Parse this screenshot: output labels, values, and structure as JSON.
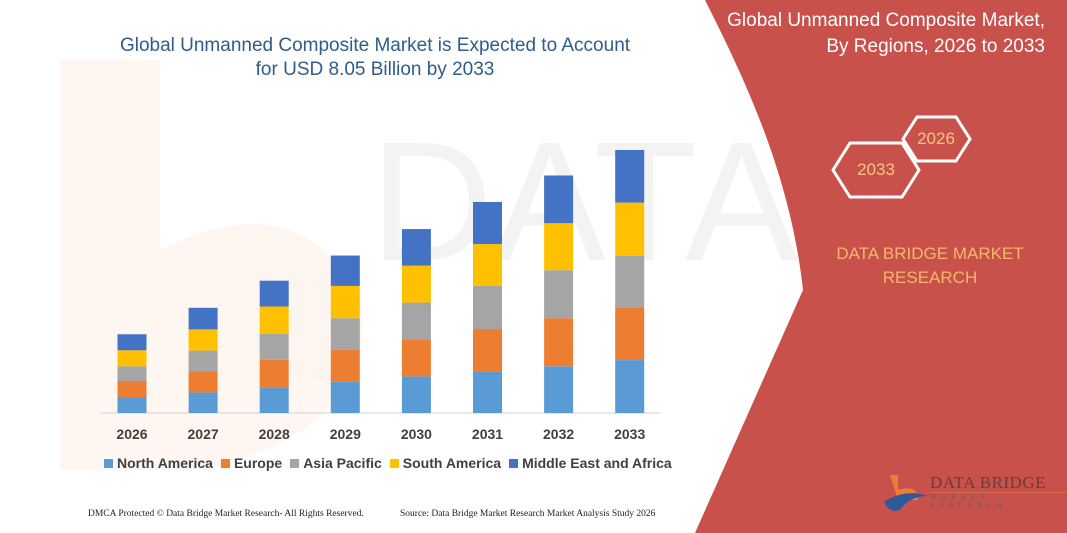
{
  "header": {
    "title_line1": "Global Unmanned Composite Market is Expected to Account",
    "title_line2": "for USD 8.05 Billion by 2033"
  },
  "side_panel": {
    "title_line1": "Global Unmanned Composite Market,",
    "title_line2": "By Regions, 2026 to 2033",
    "hex_years": [
      "2033",
      "2026"
    ],
    "brand_line1": "DATA BRIDGE MARKET",
    "brand_line2": "RESEARCH",
    "logo_text": "DATA BRIDGE",
    "logo_subtext": "MARKET RESEARCH",
    "panel_color": "#c9514b"
  },
  "footer": {
    "left": "DMCA Protected © Data Bridge Market Research-  All Rights Reserved.",
    "right": "Source: Data Bridge Market Research  Market Analysis Study 2026"
  },
  "chart_data": {
    "type": "bar",
    "stacked": true,
    "title": "Global Unmanned Composite Market is Expected to Account for USD 8.05 Billion by 2033",
    "xlabel": "",
    "ylabel": "",
    "grid": false,
    "legend_position": "bottom",
    "categories": [
      "2026",
      "2027",
      "2028",
      "2029",
      "2030",
      "2031",
      "2032",
      "2033"
    ],
    "series": [
      {
        "name": "North America",
        "color": "#5b9bd5",
        "values": [
          0.49,
          0.63,
          0.79,
          0.97,
          1.12,
          1.28,
          1.43,
          1.62
        ]
      },
      {
        "name": "Europe",
        "color": "#ed7d31",
        "values": [
          0.49,
          0.64,
          0.84,
          0.96,
          1.14,
          1.29,
          1.47,
          1.61
        ]
      },
      {
        "name": "Asia Pacific",
        "color": "#a5a5a5",
        "values": [
          0.45,
          0.64,
          0.79,
          0.97,
          1.12,
          1.32,
          1.47,
          1.58
        ]
      },
      {
        "name": "South America",
        "color": "#ffc000",
        "values": [
          0.49,
          0.65,
          0.84,
          0.99,
          1.13,
          1.28,
          1.44,
          1.63
        ]
      },
      {
        "name": "Middle East and Africa",
        "color": "#4472c4",
        "values": [
          0.49,
          0.66,
          0.79,
          0.93,
          1.12,
          1.29,
          1.46,
          1.61
        ]
      }
    ],
    "ylim": [
      0,
      8.05
    ]
  }
}
